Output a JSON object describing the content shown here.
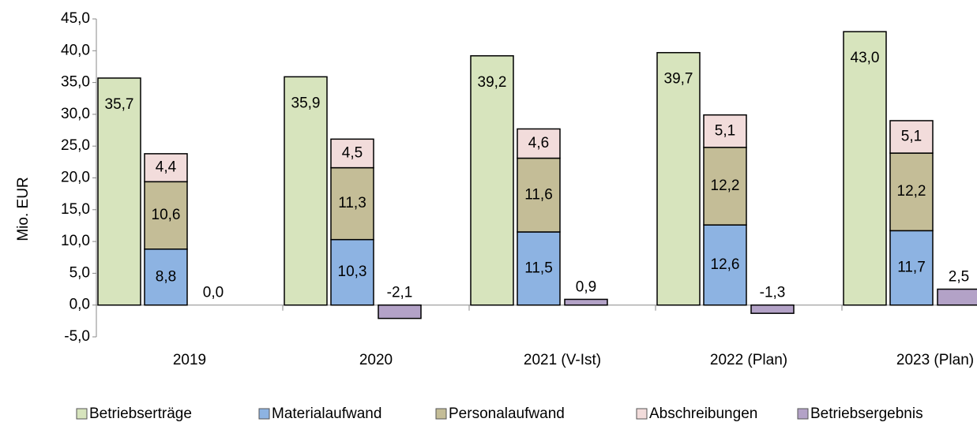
{
  "chart_data": {
    "type": "bar",
    "y_label": "Mio. EUR",
    "categories": [
      "2019",
      "2020",
      "2021 (V-Ist)",
      "2022 (Plan)",
      "2023 (Plan)"
    ],
    "series": [
      {
        "name": "Betriebserträge",
        "color": "#d7e4bd",
        "stack": "ertraege",
        "values": [
          35.7,
          35.9,
          39.2,
          39.7,
          43.0
        ],
        "value_labels": [
          "35,7",
          "35,9",
          "39,2",
          "39,7",
          "43,0"
        ]
      },
      {
        "name": "Materialaufwand",
        "color": "#8db3e2",
        "stack": "aufwand",
        "values": [
          8.8,
          10.3,
          11.5,
          12.6,
          11.7
        ],
        "value_labels": [
          "8,8",
          "10,3",
          "11,5",
          "12,6",
          "11,7"
        ]
      },
      {
        "name": "Personalaufwand",
        "color": "#c4bd97",
        "stack": "aufwand",
        "values": [
          10.6,
          11.3,
          11.6,
          12.2,
          12.2
        ],
        "value_labels": [
          "10,6",
          "11,3",
          "11,6",
          "12,2",
          "12,2"
        ]
      },
      {
        "name": "Abschreibungen",
        "color": "#f2dcdb",
        "stack": "aufwand",
        "values": [
          4.4,
          4.5,
          4.6,
          5.1,
          5.1
        ],
        "value_labels": [
          "4,4",
          "4,5",
          "4,6",
          "5,1",
          "5,1"
        ]
      },
      {
        "name": "Betriebsergebnis",
        "color": "#b3a2c7",
        "stack": "ergebnis",
        "values": [
          0.0,
          -2.1,
          0.9,
          -1.3,
          2.5
        ],
        "value_labels": [
          "0,0",
          "-2,1",
          "0,9",
          "-1,3",
          "2,5"
        ]
      }
    ],
    "ylim": [
      -5,
      45
    ],
    "yticks": [
      {
        "value": -5,
        "label": "-5,0"
      },
      {
        "value": 0,
        "label": "0,0"
      },
      {
        "value": 5,
        "label": "5,0"
      },
      {
        "value": 10,
        "label": "10,0"
      },
      {
        "value": 15,
        "label": "15,0"
      },
      {
        "value": 20,
        "label": "20,0"
      },
      {
        "value": 25,
        "label": "25,0"
      },
      {
        "value": 30,
        "label": "30,0"
      },
      {
        "value": 35,
        "label": "35,0"
      },
      {
        "value": 40,
        "label": "40,0"
      },
      {
        "value": 45,
        "label": "45,0"
      }
    ],
    "legend": "bottom"
  }
}
